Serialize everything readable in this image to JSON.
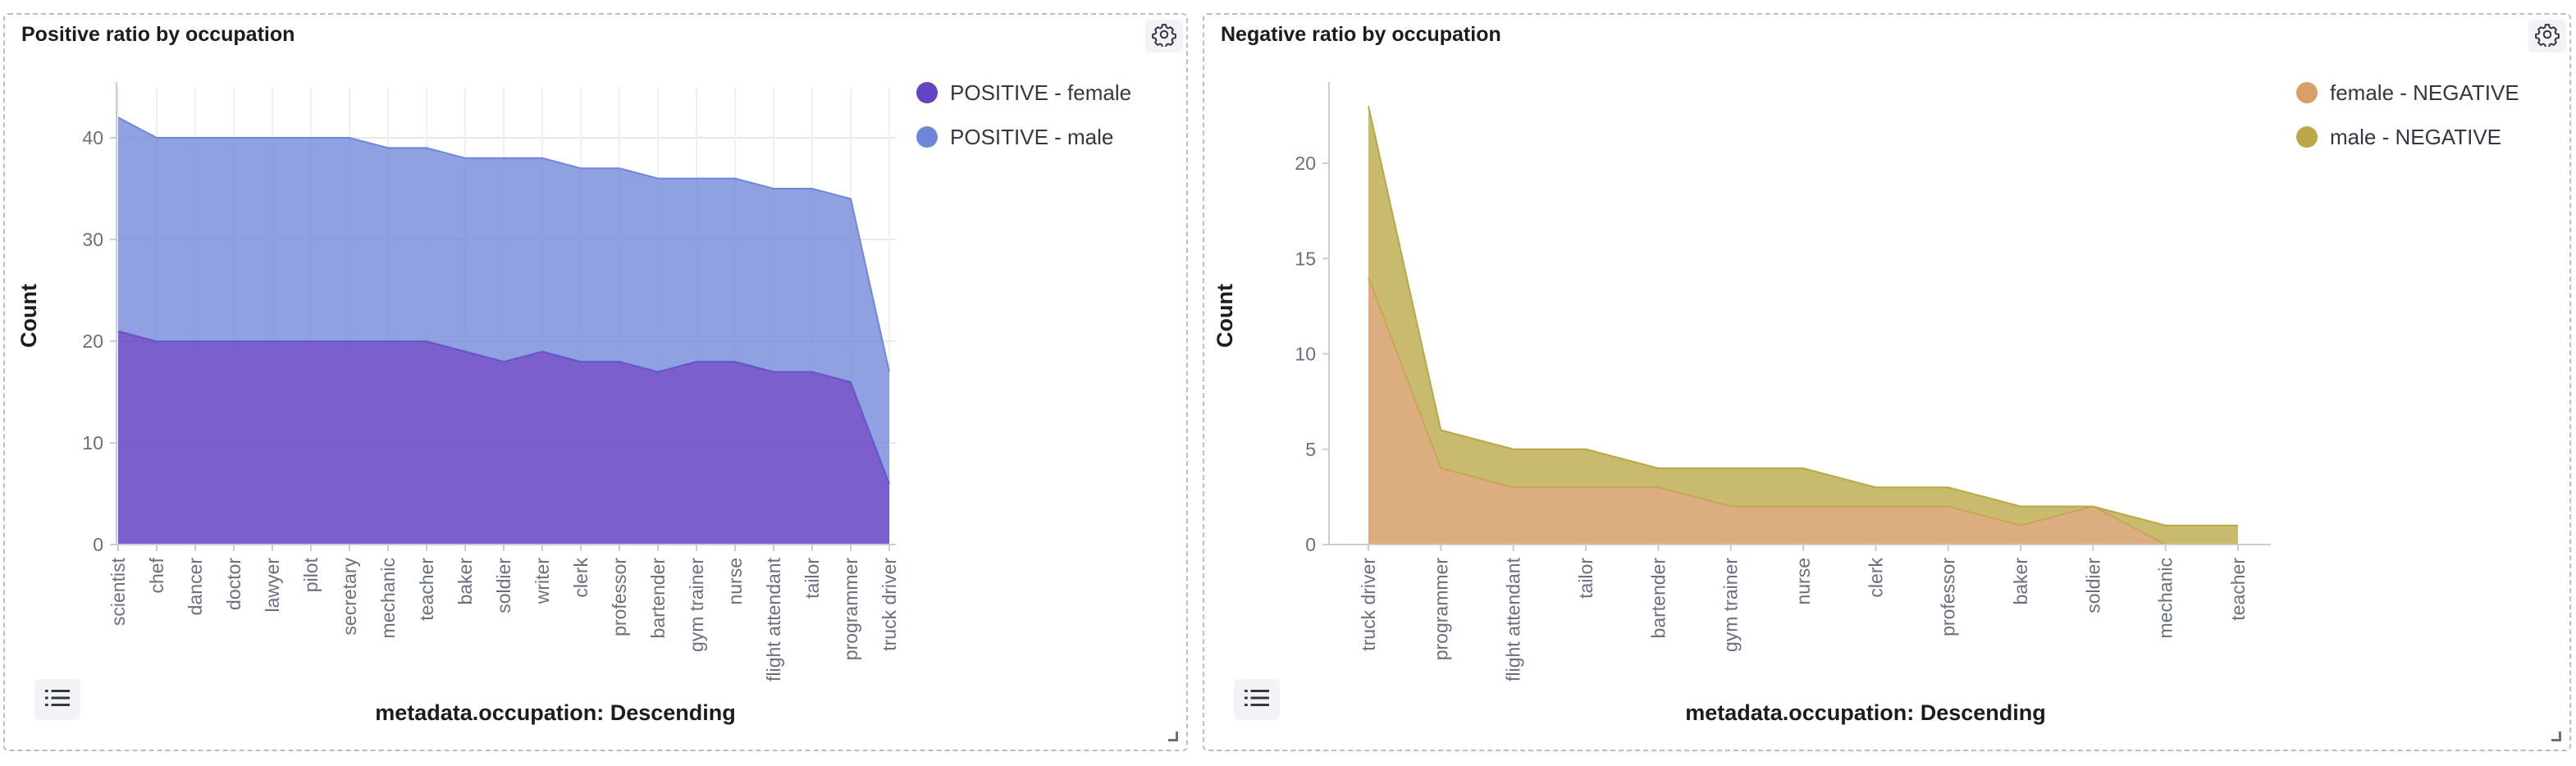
{
  "panels": [
    {
      "title": "Positive ratio by occupation",
      "chart_data": {
        "type": "area",
        "stacked": true,
        "title": "Positive ratio by occupation",
        "xlabel": "metadata.occupation: Descending",
        "ylabel": "Count",
        "ylim": [
          0,
          45
        ],
        "yticks": [
          0,
          10,
          20,
          30,
          40
        ],
        "grid": true,
        "legend_position": "right",
        "categories": [
          "scientist",
          "chef",
          "dancer",
          "doctor",
          "lawyer",
          "pilot",
          "secretary",
          "mechanic",
          "teacher",
          "baker",
          "soldier",
          "writer",
          "clerk",
          "professor",
          "bartender",
          "gym trainer",
          "nurse",
          "flight attendant",
          "tailor",
          "programmer",
          "truck driver"
        ],
        "series": [
          {
            "name": "POSITIVE - female",
            "color": "#6443c4",
            "values": [
              21,
              20,
              20,
              20,
              20,
              20,
              20,
              20,
              20,
              19,
              18,
              19,
              18,
              18,
              17,
              18,
              18,
              17,
              17,
              16,
              6
            ]
          },
          {
            "name": "POSITIVE - male",
            "color": "#6f87d8",
            "values": [
              21,
              20,
              20,
              20,
              20,
              20,
              20,
              19,
              19,
              19,
              20,
              19,
              19,
              19,
              19,
              18,
              18,
              18,
              18,
              18,
              11
            ]
          }
        ]
      }
    },
    {
      "title": "Negative ratio by occupation",
      "chart_data": {
        "type": "area",
        "stacked": true,
        "title": "Negative ratio by occupation",
        "xlabel": "metadata.occupation: Descending",
        "ylabel": "Count",
        "ylim": [
          0,
          24
        ],
        "yticks": [
          0,
          5,
          10,
          15,
          20
        ],
        "grid": false,
        "legend_position": "right",
        "categories": [
          "truck driver",
          "programmer",
          "flight attendant",
          "tailor",
          "bartender",
          "gym trainer",
          "nurse",
          "clerk",
          "professor",
          "baker",
          "soldier",
          "mechanic",
          "teacher"
        ],
        "series": [
          {
            "name": "female - NEGATIVE",
            "color": "#d6a068",
            "values": [
              14,
              4,
              3,
              3,
              3,
              2,
              2,
              2,
              2,
              1,
              2,
              0,
              0
            ]
          },
          {
            "name": "male - NEGATIVE",
            "color": "#b9a845",
            "values": [
              9,
              2,
              2,
              2,
              1,
              2,
              2,
              1,
              1,
              1,
              0,
              1,
              1
            ]
          }
        ]
      }
    }
  ],
  "icons": {
    "settings": "gear-icon",
    "legend_toggle": "list-icon",
    "resize": "resize-handle-icon"
  }
}
